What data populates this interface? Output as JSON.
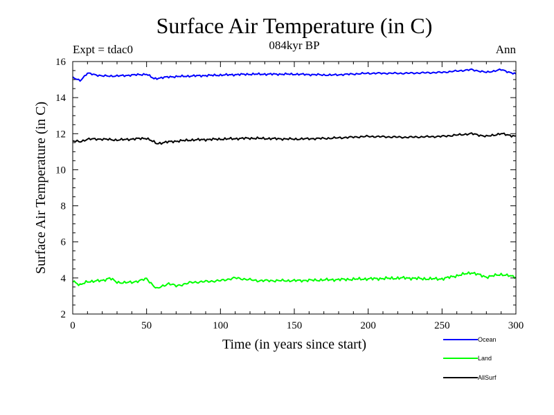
{
  "chart_data": {
    "type": "line",
    "title": "Surface Air Temperature (in C)",
    "subtitle": "084kyr BP",
    "left_label": "Expt = tdac0",
    "right_label": "Ann",
    "xlabel": "Time (in years since start)",
    "ylabel": "Surface Air Temperature (in C)",
    "xlim": [
      0,
      300
    ],
    "ylim": [
      2,
      16
    ],
    "xticks": [
      0,
      50,
      100,
      150,
      200,
      250,
      300
    ],
    "yticks": [
      2,
      4,
      6,
      8,
      10,
      12,
      14,
      16
    ],
    "grid": false,
    "legend_position": "bottom-right",
    "series": [
      {
        "name": "Ocean",
        "color": "#0000ff",
        "keypoints": [
          [
            0,
            15.1
          ],
          [
            5,
            14.95
          ],
          [
            10,
            15.35
          ],
          [
            20,
            15.2
          ],
          [
            30,
            15.2
          ],
          [
            40,
            15.25
          ],
          [
            50,
            15.3
          ],
          [
            55,
            15.05
          ],
          [
            65,
            15.15
          ],
          [
            80,
            15.2
          ],
          [
            100,
            15.25
          ],
          [
            120,
            15.3
          ],
          [
            150,
            15.3
          ],
          [
            175,
            15.25
          ],
          [
            200,
            15.35
          ],
          [
            225,
            15.35
          ],
          [
            250,
            15.4
          ],
          [
            270,
            15.55
          ],
          [
            280,
            15.4
          ],
          [
            290,
            15.55
          ],
          [
            300,
            15.3
          ]
        ],
        "noise": 0.07
      },
      {
        "name": "Land",
        "color": "#00ff00",
        "keypoints": [
          [
            0,
            3.85
          ],
          [
            5,
            3.6
          ],
          [
            10,
            3.8
          ],
          [
            20,
            3.85
          ],
          [
            25,
            4.0
          ],
          [
            30,
            3.75
          ],
          [
            40,
            3.75
          ],
          [
            50,
            3.95
          ],
          [
            57,
            3.4
          ],
          [
            65,
            3.7
          ],
          [
            70,
            3.55
          ],
          [
            80,
            3.75
          ],
          [
            100,
            3.85
          ],
          [
            110,
            4.0
          ],
          [
            125,
            3.85
          ],
          [
            150,
            3.85
          ],
          [
            175,
            3.9
          ],
          [
            200,
            3.95
          ],
          [
            225,
            4.0
          ],
          [
            240,
            3.95
          ],
          [
            250,
            3.95
          ],
          [
            270,
            4.3
          ],
          [
            280,
            4.05
          ],
          [
            290,
            4.2
          ],
          [
            300,
            4.05
          ]
        ],
        "noise": 0.1
      },
      {
        "name": "AllSurf",
        "color": "#000000",
        "keypoints": [
          [
            0,
            11.6
          ],
          [
            5,
            11.55
          ],
          [
            10,
            11.7
          ],
          [
            20,
            11.7
          ],
          [
            30,
            11.65
          ],
          [
            40,
            11.7
          ],
          [
            50,
            11.75
          ],
          [
            57,
            11.45
          ],
          [
            65,
            11.55
          ],
          [
            80,
            11.65
          ],
          [
            100,
            11.7
          ],
          [
            120,
            11.75
          ],
          [
            150,
            11.7
          ],
          [
            175,
            11.75
          ],
          [
            200,
            11.85
          ],
          [
            225,
            11.8
          ],
          [
            250,
            11.85
          ],
          [
            270,
            12.0
          ],
          [
            280,
            11.85
          ],
          [
            290,
            12.0
          ],
          [
            300,
            11.85
          ]
        ],
        "noise": 0.08
      }
    ]
  }
}
